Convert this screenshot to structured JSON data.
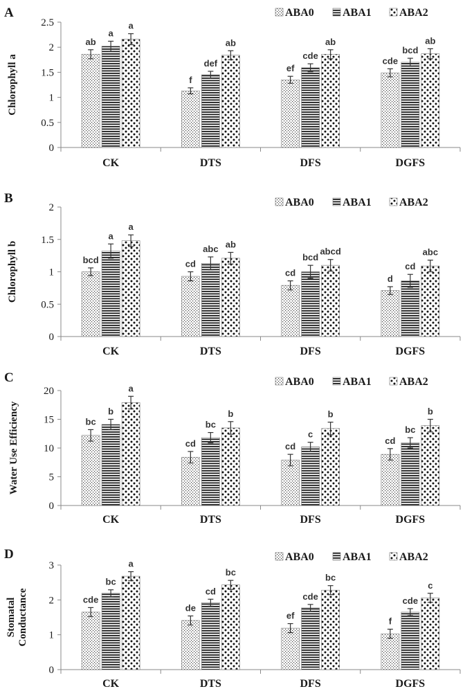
{
  "chart_data": [
    {
      "type": "bar",
      "panel": "A",
      "ylabel": "Chlorophyll a",
      "ylim": [
        0,
        2.5
      ],
      "yticks": [
        "0",
        "0.5",
        "1",
        "1.5",
        "2",
        "2.5"
      ],
      "categories": [
        "CK",
        "DTS",
        "DFS",
        "DGFS"
      ],
      "series": [
        {
          "name": "ABA0",
          "values": [
            1.86,
            1.13,
            1.35,
            1.49
          ],
          "errors": [
            0.09,
            0.06,
            0.07,
            0.08
          ],
          "labels": [
            "ab",
            "f",
            "ef",
            "cde"
          ]
        },
        {
          "name": "ABA1",
          "values": [
            2.02,
            1.45,
            1.59,
            1.7
          ],
          "errors": [
            0.1,
            0.07,
            0.08,
            0.08
          ],
          "labels": [
            "a",
            "def",
            "cde",
            "bcd"
          ]
        },
        {
          "name": "ABA2",
          "values": [
            2.16,
            1.84,
            1.86,
            1.87
          ],
          "errors": [
            0.11,
            0.09,
            0.09,
            0.1
          ],
          "labels": [
            "a",
            "ab",
            "ab",
            "ab"
          ]
        }
      ]
    },
    {
      "type": "bar",
      "panel": "B",
      "ylabel": "Chlorophyll b",
      "ylim": [
        0,
        2
      ],
      "yticks": [
        "0",
        "0.5",
        "1",
        "1.5",
        "2"
      ],
      "categories": [
        "CK",
        "DTS",
        "DFS",
        "DGFS"
      ],
      "series": [
        {
          "name": "ABA0",
          "values": [
            1.0,
            0.93,
            0.79,
            0.71
          ],
          "errors": [
            0.06,
            0.07,
            0.07,
            0.06
          ],
          "labels": [
            "bcd",
            "cd",
            "cd",
            "d"
          ]
        },
        {
          "name": "ABA1",
          "values": [
            1.32,
            1.13,
            1.0,
            0.86
          ],
          "errors": [
            0.11,
            0.1,
            0.1,
            0.1
          ],
          "labels": [
            "a",
            "abc",
            "bcd",
            "cd"
          ]
        },
        {
          "name": "ABA2",
          "values": [
            1.48,
            1.21,
            1.1,
            1.09
          ],
          "errors": [
            0.09,
            0.09,
            0.09,
            0.09
          ],
          "labels": [
            "a",
            "ab",
            "abcd",
            "abc"
          ]
        }
      ]
    },
    {
      "type": "bar",
      "panel": "C",
      "ylabel": "Water Use Efficiency",
      "ylim": [
        0,
        20
      ],
      "yticks": [
        "0",
        "5",
        "10",
        "15",
        "20"
      ],
      "categories": [
        "CK",
        "DTS",
        "DFS",
        "DGFS"
      ],
      "series": [
        {
          "name": "ABA0",
          "values": [
            12.2,
            8.4,
            7.9,
            8.9
          ],
          "errors": [
            1.0,
            1.0,
            1.0,
            1.0
          ],
          "labels": [
            "bc",
            "cd",
            "cd",
            "cd"
          ]
        },
        {
          "name": "ABA1",
          "values": [
            14.1,
            11.8,
            10.2,
            10.9
          ],
          "errors": [
            0.9,
            0.9,
            0.8,
            0.9
          ],
          "labels": [
            "b",
            "bc",
            "c",
            "bc"
          ]
        },
        {
          "name": "ABA2",
          "values": [
            17.9,
            13.5,
            13.4,
            13.9
          ],
          "errors": [
            1.1,
            1.1,
            1.1,
            1.1
          ],
          "labels": [
            "a",
            "b",
            "b",
            "b"
          ]
        }
      ]
    },
    {
      "type": "bar",
      "panel": "D",
      "ylabel_lines": [
        "Stomatal",
        "Conductance"
      ],
      "ylim": [
        0,
        3
      ],
      "yticks": [
        "0",
        "1",
        "2",
        "3"
      ],
      "categories": [
        "CK",
        "DTS",
        "DFS",
        "DGFS"
      ],
      "series": [
        {
          "name": "ABA0",
          "values": [
            1.65,
            1.41,
            1.19,
            1.03
          ],
          "errors": [
            0.13,
            0.13,
            0.13,
            0.13
          ],
          "labels": [
            "cde",
            "de",
            "ef",
            "f"
          ]
        },
        {
          "name": "ABA1",
          "values": [
            2.19,
            1.92,
            1.77,
            1.65
          ],
          "errors": [
            0.1,
            0.1,
            0.1,
            0.1
          ],
          "labels": [
            "bc",
            "cd",
            "cde",
            "cde"
          ]
        },
        {
          "name": "ABA2",
          "values": [
            2.68,
            2.43,
            2.28,
            2.06
          ],
          "errors": [
            0.13,
            0.13,
            0.13,
            0.13
          ],
          "labels": [
            "a",
            "bc",
            "bc",
            "c"
          ]
        }
      ]
    }
  ]
}
